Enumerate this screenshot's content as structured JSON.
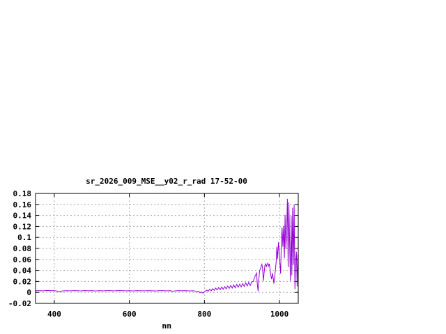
{
  "window": {
    "background_color": "#ffffff"
  },
  "chart_data": {
    "type": "line",
    "title": "sr_2026_009_MSE__y02_r_rad 17-52-00",
    "xlabel": "nm",
    "ylabel": "",
    "xlim": [
      350,
      1050
    ],
    "ylim": [
      -0.02,
      0.18
    ],
    "x_ticks": [
      400,
      600,
      800,
      1000
    ],
    "y_ticks": [
      -0.02,
      0,
      0.02,
      0.04,
      0.06,
      0.08,
      0.1,
      0.12,
      0.14,
      0.16,
      0.18
    ],
    "grid": true,
    "legend": false,
    "line_color": "#9400d3",
    "grid_color": "#a8a8a8",
    "border_color": "#000000",
    "series": [
      {
        "name": "sr_2026_009_MSE__y02_r_rad",
        "points": [
          [
            350,
            0.003
          ],
          [
            360,
            0.0032
          ],
          [
            370,
            0.0028
          ],
          [
            380,
            0.0034
          ],
          [
            390,
            0.003
          ],
          [
            400,
            0.0032
          ],
          [
            410,
            0.0022
          ],
          [
            415,
            0.0014
          ],
          [
            420,
            0.0024
          ],
          [
            430,
            0.003
          ],
          [
            440,
            0.0028
          ],
          [
            450,
            0.0032
          ],
          [
            460,
            0.003
          ],
          [
            470,
            0.0027
          ],
          [
            480,
            0.0033
          ],
          [
            490,
            0.0029
          ],
          [
            500,
            0.0031
          ],
          [
            510,
            0.0026
          ],
          [
            520,
            0.0032
          ],
          [
            530,
            0.0028
          ],
          [
            540,
            0.0031
          ],
          [
            550,
            0.003
          ],
          [
            560,
            0.0028
          ],
          [
            570,
            0.0033
          ],
          [
            580,
            0.003
          ],
          [
            590,
            0.0028
          ],
          [
            600,
            0.0031
          ],
          [
            610,
            0.0027
          ],
          [
            620,
            0.0032
          ],
          [
            630,
            0.0029
          ],
          [
            640,
            0.0028
          ],
          [
            650,
            0.0031
          ],
          [
            660,
            0.0029
          ],
          [
            670,
            0.0026
          ],
          [
            680,
            0.0032
          ],
          [
            690,
            0.003
          ],
          [
            700,
            0.0028
          ],
          [
            710,
            0.003
          ],
          [
            715,
            0.002
          ],
          [
            720,
            0.0026
          ],
          [
            730,
            0.003
          ],
          [
            740,
            0.0029
          ],
          [
            750,
            0.0031
          ],
          [
            760,
            0.0027
          ],
          [
            770,
            0.0029
          ],
          [
            776,
            0.0024
          ],
          [
            780,
            0.001
          ],
          [
            784,
            0.0022
          ],
          [
            788,
            -0.0008
          ],
          [
            792,
            0.0006
          ],
          [
            796,
            -0.0012
          ],
          [
            800,
            0.0008
          ],
          [
            803,
            0.0024
          ],
          [
            806,
            0.0042
          ],
          [
            810,
            0.002
          ],
          [
            814,
            0.0058
          ],
          [
            818,
            0.003
          ],
          [
            822,
            0.0068
          ],
          [
            826,
            0.0038
          ],
          [
            830,
            0.0078
          ],
          [
            834,
            0.0046
          ],
          [
            838,
            0.0088
          ],
          [
            842,
            0.005
          ],
          [
            846,
            0.0098
          ],
          [
            850,
            0.0056
          ],
          [
            854,
            0.0106
          ],
          [
            858,
            0.0064
          ],
          [
            862,
            0.0116
          ],
          [
            866,
            0.0072
          ],
          [
            870,
            0.0126
          ],
          [
            874,
            0.0078
          ],
          [
            878,
            0.0136
          ],
          [
            882,
            0.0084
          ],
          [
            886,
            0.0146
          ],
          [
            890,
            0.0092
          ],
          [
            894,
            0.0152
          ],
          [
            898,
            0.01
          ],
          [
            902,
            0.0162
          ],
          [
            906,
            0.0108
          ],
          [
            910,
            0.0172
          ],
          [
            914,
            0.0116
          ],
          [
            918,
            0.0182
          ],
          [
            922,
            0.0124
          ],
          [
            926,
            0.0192
          ],
          [
            930,
            0.02
          ],
          [
            933,
            0.026
          ],
          [
            936,
            0.031
          ],
          [
            939,
            0.035
          ],
          [
            941,
            0.014
          ],
          [
            943,
            0.002
          ],
          [
            945,
            0.024
          ],
          [
            947,
            0.039
          ],
          [
            949,
            0.043
          ],
          [
            951,
            0.047
          ],
          [
            953,
            0.051
          ],
          [
            955,
            0.044
          ],
          [
            957,
            0.021
          ],
          [
            959,
            0.036
          ],
          [
            961,
            0.049
          ],
          [
            963,
            0.052
          ],
          [
            965,
            0.047
          ],
          [
            967,
            0.051
          ],
          [
            969,
            0.053
          ],
          [
            971,
            0.048
          ],
          [
            973,
            0.052
          ],
          [
            975,
            0.041
          ],
          [
            977,
            0.03
          ],
          [
            979,
            0.024
          ],
          [
            981,
            0.035
          ],
          [
            983,
            0.028
          ],
          [
            985,
            0.016
          ],
          [
            987,
            0.028
          ],
          [
            989,
            0.04
          ],
          [
            991,
            0.054
          ],
          [
            993,
            0.083
          ],
          [
            995,
            0.061
          ],
          [
            997,
            0.091
          ],
          [
            999,
            0.076
          ],
          [
            1001,
            0.054
          ],
          [
            1003,
            0.034
          ],
          [
            1005,
            0.096
          ],
          [
            1007,
            0.118
          ],
          [
            1009,
            0.083
          ],
          [
            1011,
            0.121
          ],
          [
            1013,
            0.062
          ],
          [
            1015,
            0.141
          ],
          [
            1017,
            0.079
          ],
          [
            1019,
            0.108
          ],
          [
            1021,
            0.17
          ],
          [
            1023,
            0.046
          ],
          [
            1025,
            0.164
          ],
          [
            1027,
            0.09
          ],
          [
            1029,
            0.021
          ],
          [
            1031,
            0.139
          ],
          [
            1033,
            0.031
          ],
          [
            1035,
            0.154
          ],
          [
            1037,
            0.05
          ],
          [
            1039,
            0.159
          ],
          [
            1041,
            0.006
          ],
          [
            1043,
            0.056
          ],
          [
            1045,
            0.074
          ],
          [
            1047,
            0.011
          ],
          [
            1049,
            0.069
          ],
          [
            1050,
            0.064
          ]
        ]
      }
    ]
  }
}
